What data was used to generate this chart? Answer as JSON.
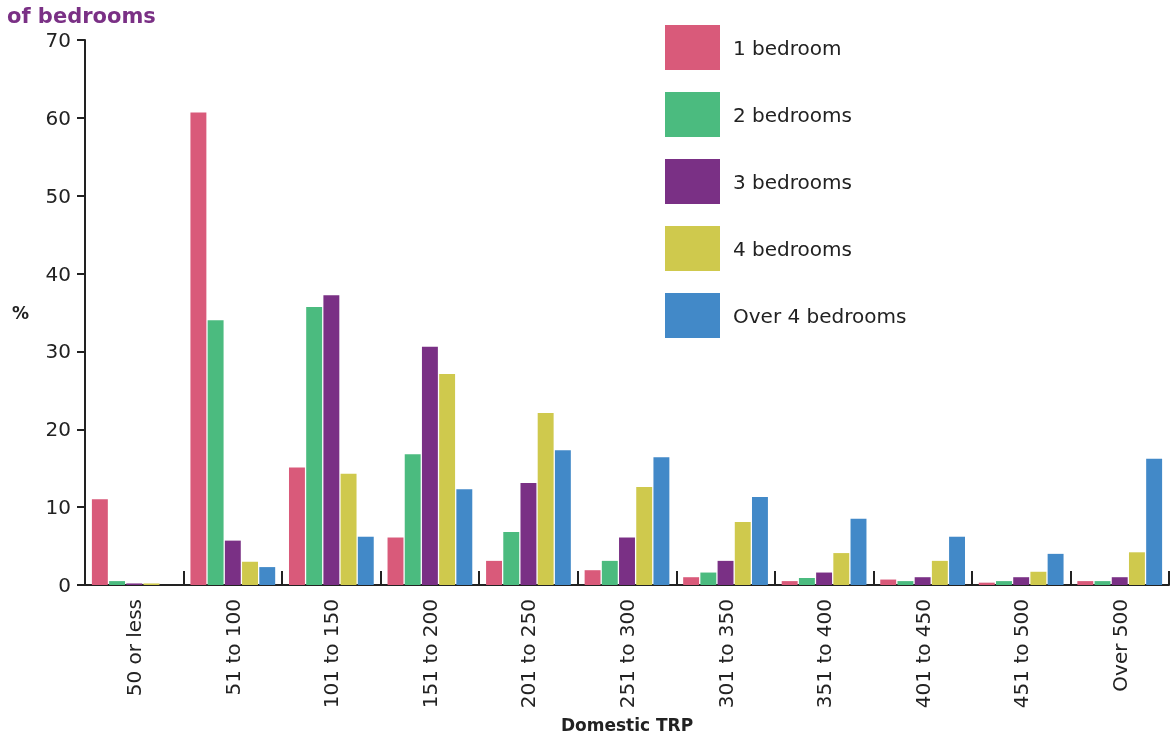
{
  "chart_data": {
    "type": "bar",
    "title": "of bedrooms",
    "xlabel": "Domestic TRP",
    "ylabel": "%",
    "categories": [
      "50 or less",
      "51 to 100",
      "101 to 150",
      "151 to 200",
      "201 to 250",
      "251 to 300",
      "301 to 350",
      "351 to 400",
      "401 to 450",
      "451 to 500",
      "Over 500"
    ],
    "series": [
      {
        "name": "1 bedroom",
        "color": "#d95a7a",
        "values": [
          11.0,
          60.7,
          15.1,
          6.1,
          3.1,
          1.9,
          1.0,
          0.5,
          0.7,
          0.3,
          0.5
        ]
      },
      {
        "name": "2 bedrooms",
        "color": "#4bbb7f",
        "values": [
          0.5,
          34.0,
          35.7,
          16.8,
          6.8,
          3.1,
          1.6,
          0.9,
          0.5,
          0.5,
          0.5
        ]
      },
      {
        "name": "3 bedrooms",
        "color": "#7a3085",
        "values": [
          0.2,
          5.7,
          37.2,
          30.6,
          13.1,
          6.1,
          3.1,
          1.6,
          1.0,
          1.0,
          1.0
        ]
      },
      {
        "name": "4 bedrooms",
        "color": "#cfc94d",
        "values": [
          0.2,
          3.0,
          14.3,
          27.1,
          22.1,
          12.6,
          8.1,
          4.1,
          3.1,
          1.7,
          4.2
        ]
      },
      {
        "name": "Over 4 bedrooms",
        "color": "#4289c8",
        "values": [
          0,
          2.3,
          6.2,
          12.3,
          17.3,
          16.4,
          11.3,
          8.5,
          6.2,
          4.0,
          16.2
        ]
      }
    ],
    "ylim": [
      0,
      70
    ],
    "yticks": [
      0,
      10,
      20,
      30,
      40,
      50,
      60,
      70
    ],
    "grid": false,
    "legend": "top right"
  }
}
